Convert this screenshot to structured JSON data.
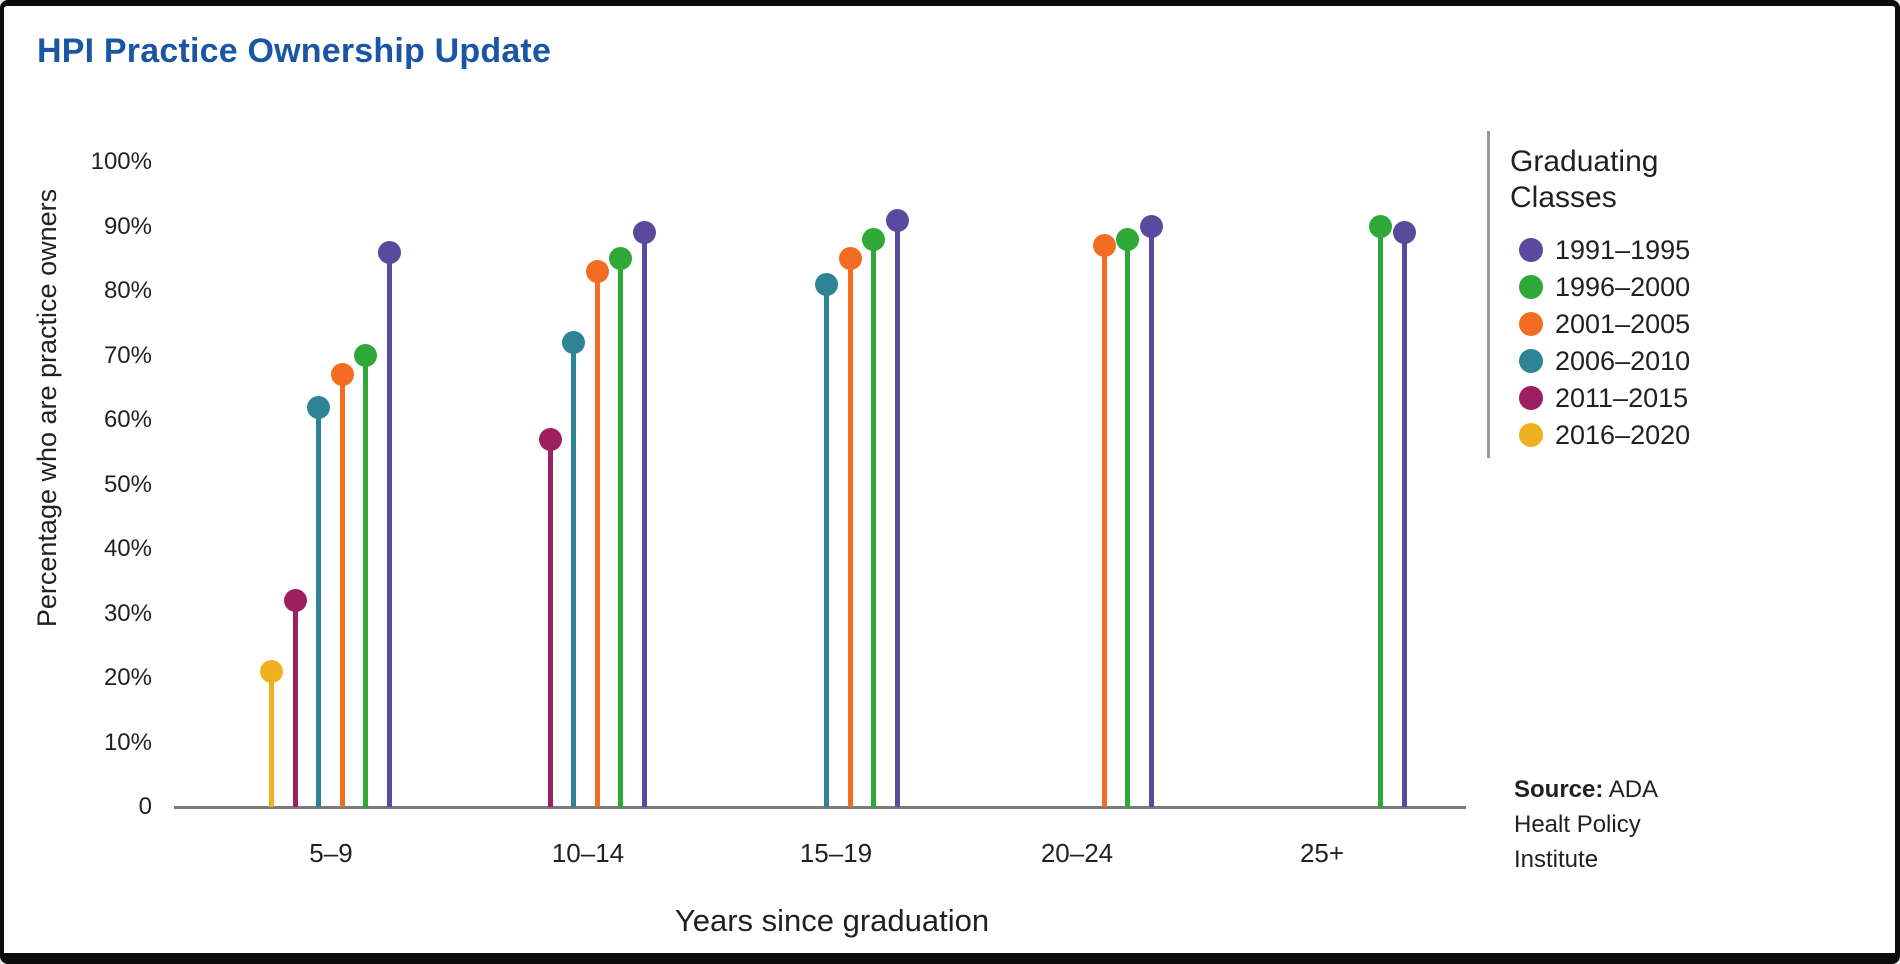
{
  "card": {
    "title": "HPI Practice Ownership Update",
    "source": {
      "label": "Source:",
      "line1_rest": " ADA",
      "line2": "Healt Policy",
      "line3": "Institute"
    }
  },
  "chart_data": {
    "type": "lollipop",
    "title": "HPI Practice Ownership Update",
    "xlabel": "Years since graduation",
    "ylabel": "Percentage who are practice owners",
    "categories": [
      "5–9",
      "10–14",
      "15–19",
      "20–24",
      "25+"
    ],
    "ylim": [
      0,
      100
    ],
    "grid": false,
    "legend_position": "right",
    "legend_title": "Graduating Classes",
    "y_ticks": [
      {
        "label": "100%",
        "value": 100
      },
      {
        "label": "90%",
        "value": 90
      },
      {
        "label": "80%",
        "value": 80
      },
      {
        "label": "70%",
        "value": 70
      },
      {
        "label": "60%",
        "value": 60
      },
      {
        "label": "50%",
        "value": 50
      },
      {
        "label": "40%",
        "value": 40
      },
      {
        "label": "30%",
        "value": 30
      },
      {
        "label": "20%",
        "value": 20
      },
      {
        "label": "10%",
        "value": 10
      },
      {
        "label": "0",
        "value": 0
      }
    ],
    "series": [
      {
        "name": "1991–1995",
        "color": "#5A4A9D",
        "values": [
          86,
          89,
          91,
          90,
          89
        ]
      },
      {
        "name": "1996–2000",
        "color": "#2EA836",
        "values": [
          70,
          85,
          88,
          88,
          90
        ]
      },
      {
        "name": "2001–2005",
        "color": "#F26C21",
        "values": [
          67,
          83,
          85,
          87,
          null
        ]
      },
      {
        "name": "2006–2010",
        "color": "#2E8495",
        "values": [
          62,
          72,
          81,
          null,
          null
        ]
      },
      {
        "name": "2011–2015",
        "color": "#9C1F60",
        "values": [
          32,
          57,
          null,
          null,
          null
        ]
      },
      {
        "name": "2016–2020",
        "color": "#EEB120",
        "values": [
          21,
          null,
          null,
          null,
          null
        ]
      }
    ]
  }
}
